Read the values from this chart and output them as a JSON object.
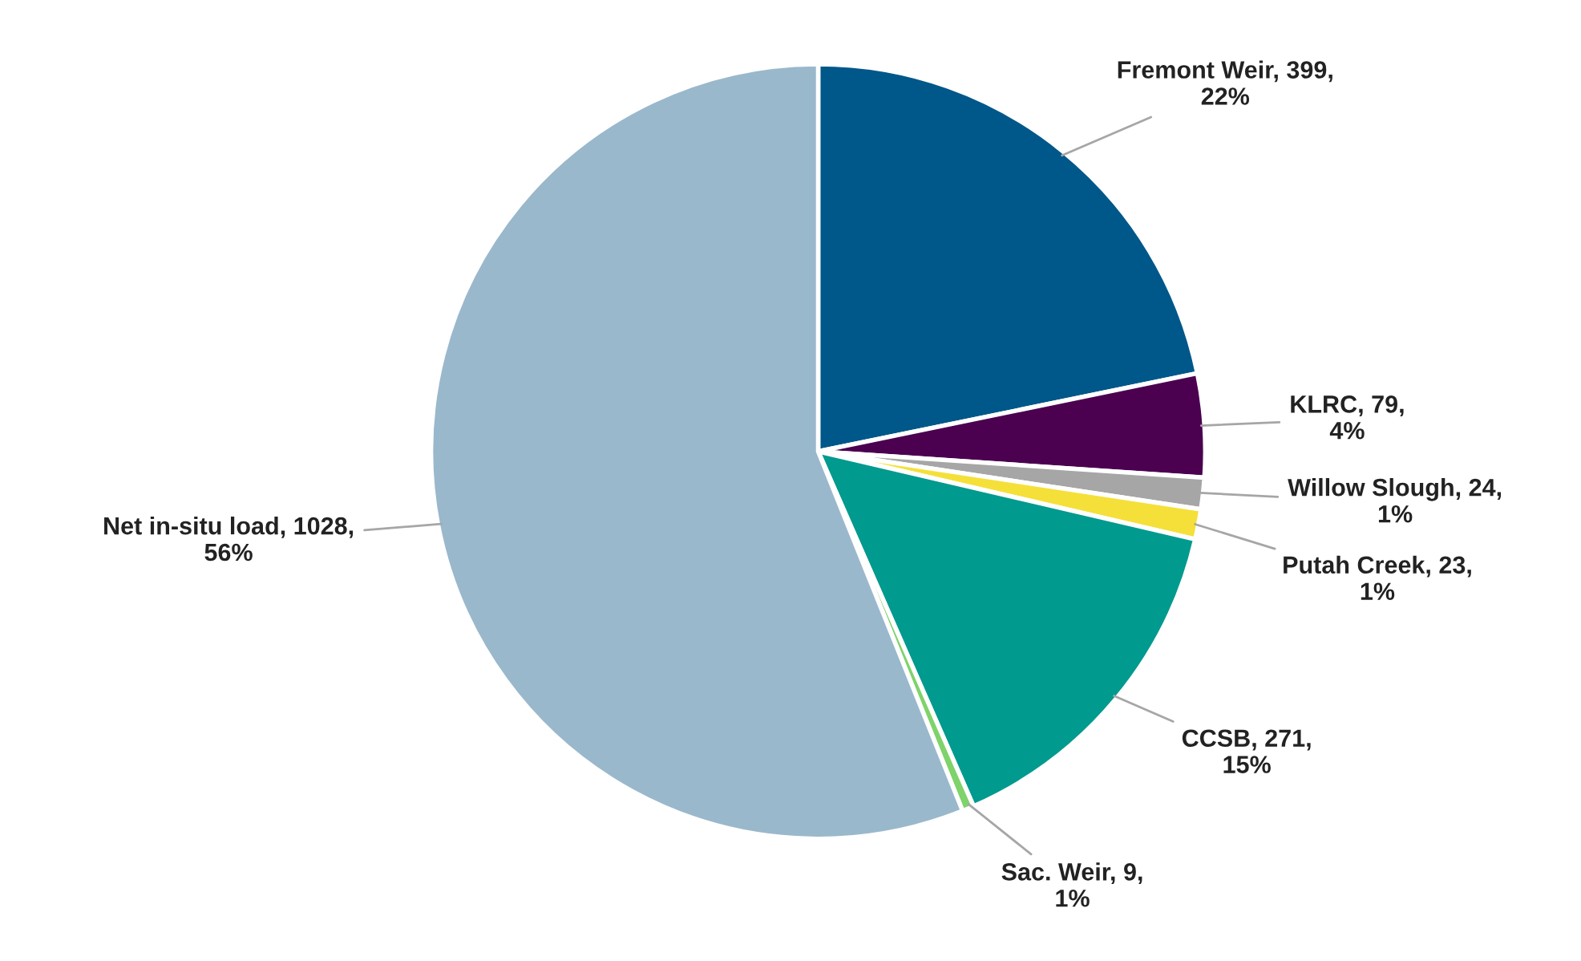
{
  "chart_data": {
    "type": "pie",
    "categories": [
      "Fremont Weir",
      "KLRC",
      "Willow Slough",
      "Putah Creek",
      "CCSB",
      "Sac. Weir",
      "Net in-situ load"
    ],
    "values": [
      399,
      79,
      24,
      23,
      271,
      9,
      1028
    ],
    "value_labels": [
      "399,\n22%",
      "79,\n4%",
      "24,\n1%",
      "23,\n1%",
      "271,\n15%",
      "9,\n1%",
      "1028,\n56%"
    ],
    "colors": [
      "#00578a",
      "#4b0050",
      "#a6a6a6",
      "#f5e03a",
      "#009a8e",
      "#7ed36a",
      "#9ab8cc"
    ]
  }
}
